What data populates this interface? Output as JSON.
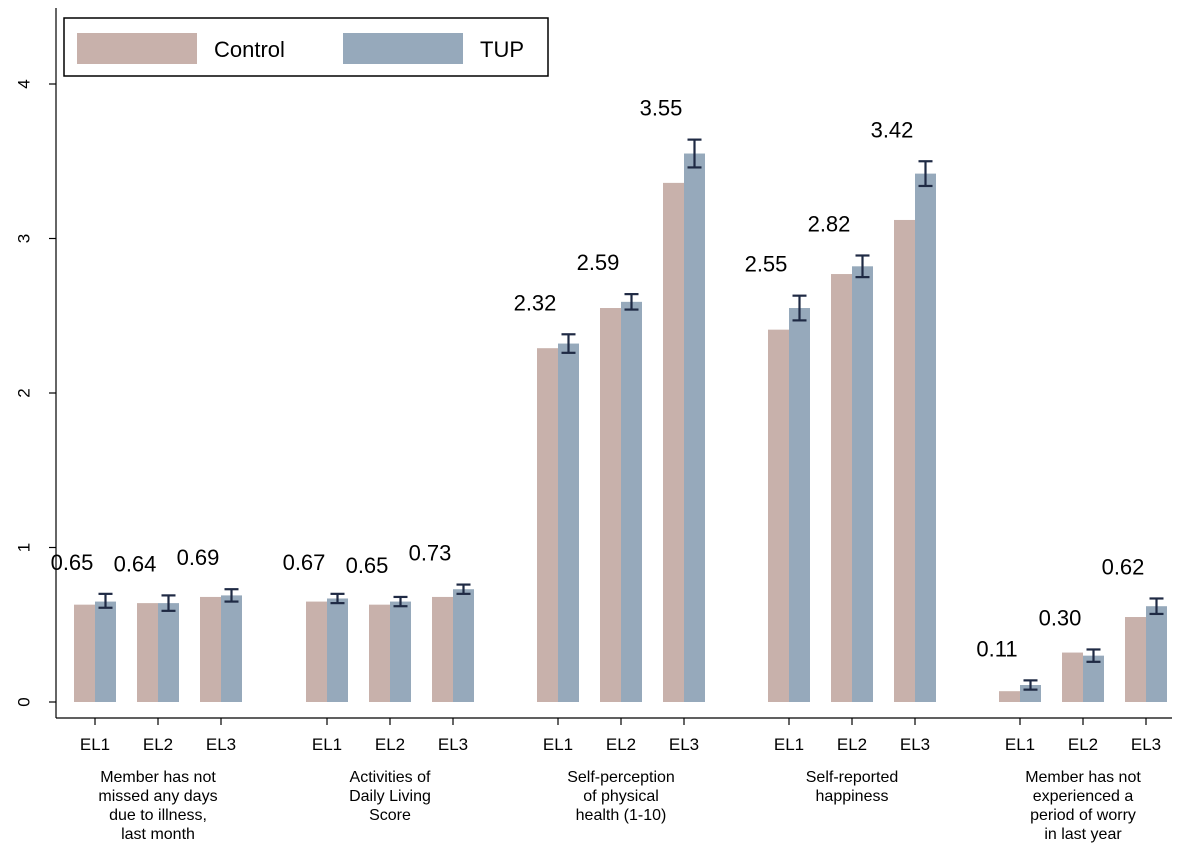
{
  "chart_data": {
    "type": "bar",
    "title": "",
    "xlabel": "",
    "ylabel": "",
    "ylim": [
      0,
      4.4
    ],
    "yticks": [
      0,
      1,
      2,
      3,
      4
    ],
    "ytick_labels": [
      "0",
      "1",
      "2",
      "3",
      "4"
    ],
    "grid": false,
    "legend_position": "top-left",
    "legend": [
      "Control",
      "TUP"
    ],
    "colors": {
      "Control": "#c8b1ab",
      "TUP": "#96a9bb",
      "error_bar": "#1f2a44"
    },
    "wave_labels": [
      "EL1",
      "EL2",
      "EL3"
    ],
    "groups": [
      {
        "label_lines": [
          "Member has not",
          "missed any days",
          "due to illness,",
          "last month"
        ],
        "control": [
          0.63,
          0.64,
          0.68
        ],
        "tup": [
          0.65,
          0.64,
          0.69
        ],
        "tup_ci": [
          [
            0.61,
            0.7
          ],
          [
            0.59,
            0.69
          ],
          [
            0.65,
            0.73
          ]
        ],
        "value_labels": [
          "0.65",
          "0.64",
          "0.69"
        ]
      },
      {
        "label_lines": [
          "Activities of",
          "Daily Living",
          "Score"
        ],
        "control": [
          0.65,
          0.63,
          0.68
        ],
        "tup": [
          0.67,
          0.65,
          0.73
        ],
        "tup_ci": [
          [
            0.64,
            0.7
          ],
          [
            0.62,
            0.68
          ],
          [
            0.7,
            0.76
          ]
        ],
        "value_labels": [
          "0.67",
          "0.65",
          "0.73"
        ]
      },
      {
        "label_lines": [
          "Self-perception",
          "of physical",
          "health (1-10)"
        ],
        "control": [
          2.29,
          2.55,
          3.36
        ],
        "tup": [
          2.32,
          2.59,
          3.55
        ],
        "tup_ci": [
          [
            2.26,
            2.38
          ],
          [
            2.54,
            2.64
          ],
          [
            3.46,
            3.64
          ]
        ],
        "value_labels": [
          "2.32",
          "2.59",
          "3.55"
        ]
      },
      {
        "label_lines": [
          "Self-reported",
          "happiness"
        ],
        "control": [
          2.41,
          2.77,
          3.12
        ],
        "tup": [
          2.55,
          2.82,
          3.42
        ],
        "tup_ci": [
          [
            2.47,
            2.63
          ],
          [
            2.75,
            2.89
          ],
          [
            3.34,
            3.5
          ]
        ],
        "value_labels": [
          "2.55",
          "2.82",
          "3.42"
        ]
      },
      {
        "label_lines": [
          "Member has not",
          "experienced a",
          "period of worry",
          "in last year"
        ],
        "control": [
          0.07,
          0.32,
          0.55
        ],
        "tup": [
          0.11,
          0.3,
          0.62
        ],
        "tup_ci": [
          [
            0.08,
            0.14
          ],
          [
            0.26,
            0.34
          ],
          [
            0.57,
            0.67
          ]
        ],
        "value_labels": [
          "0.11",
          "0.30",
          "0.62"
        ]
      }
    ]
  }
}
